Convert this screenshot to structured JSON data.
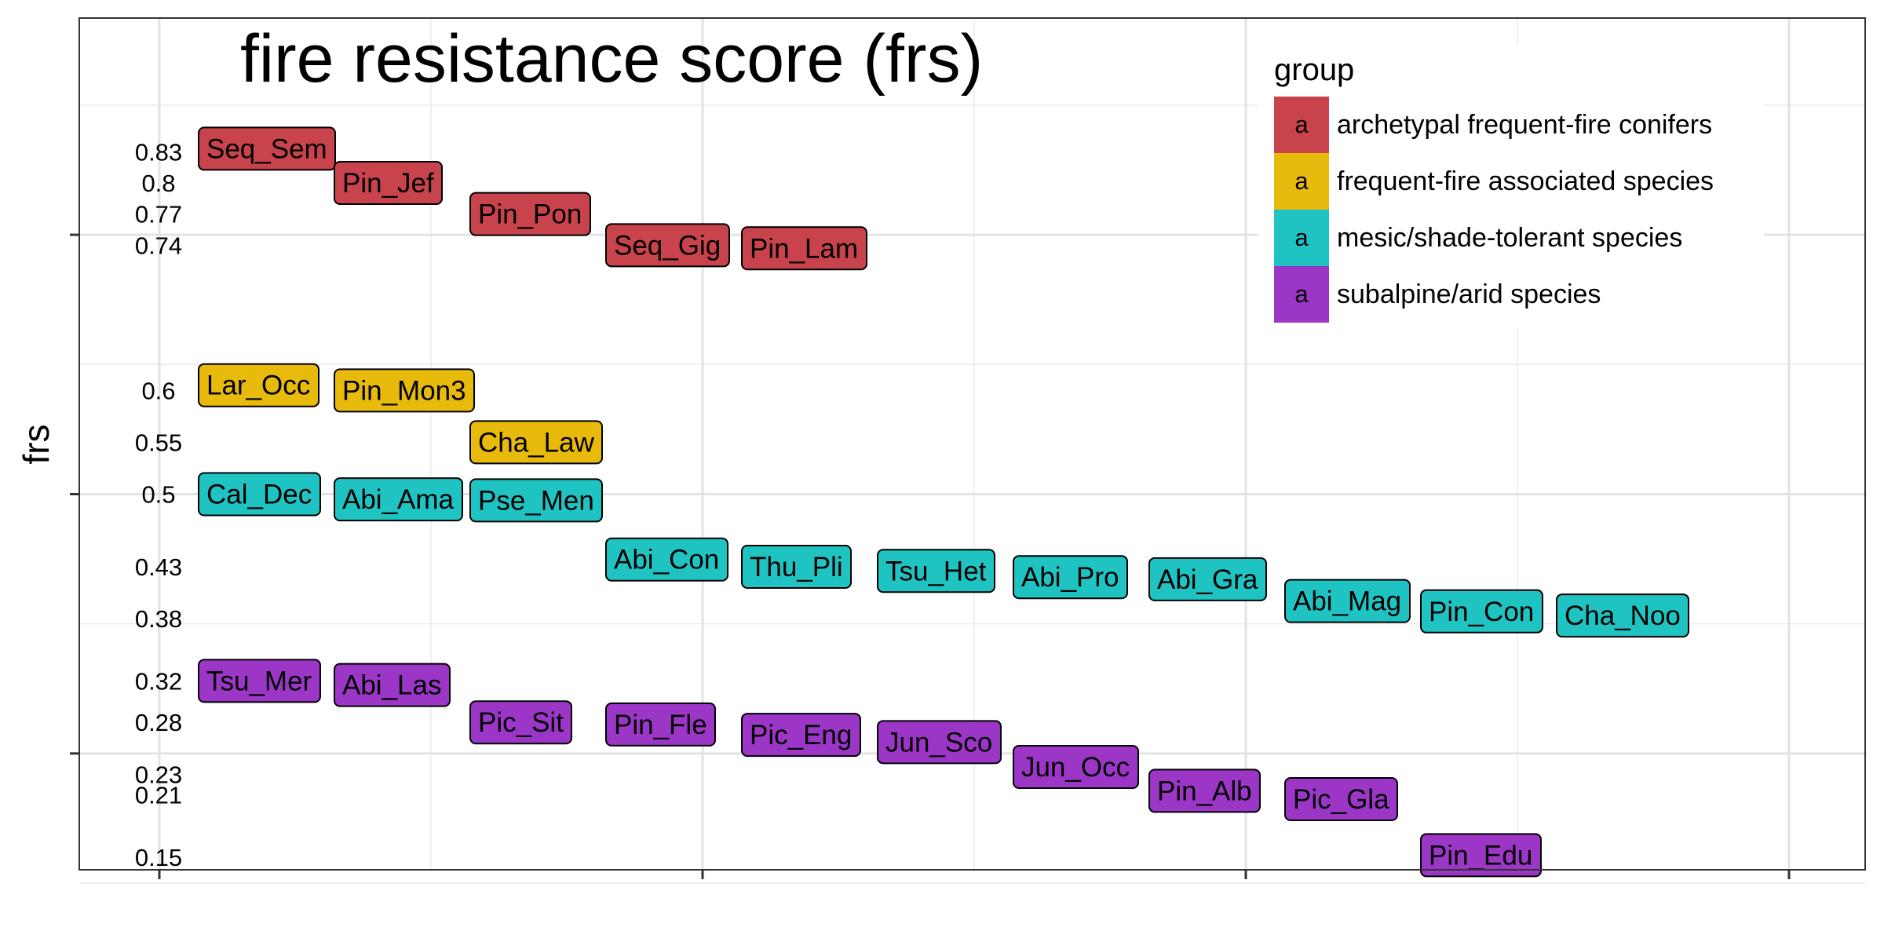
{
  "chart_data": {
    "type": "scatter",
    "title": "fire resistance score (frs)",
    "ylabel": "frs",
    "xlabel": "",
    "ylim": [
      0.12,
      0.87
    ],
    "y_major_ticks": [
      0.25,
      0.5,
      0.75
    ],
    "y_minor_ticks": [
      0.125,
      0.375,
      0.625,
      0.875
    ],
    "x_major_ticks": [
      0,
      10,
      20,
      30
    ],
    "x_minor_ticks": [
      5,
      15,
      25
    ],
    "xlim": [
      -1.5,
      31.5
    ],
    "grid": true,
    "legend_position": "top-right",
    "legend": {
      "title": "group",
      "key_glyph": "a",
      "entries": [
        {
          "label": "archetypal frequent-fire conifers",
          "color": "#C8434B"
        },
        {
          "label": "frequent-fire associated species",
          "color": "#E8BA0C"
        },
        {
          "label": "mesic/shade-tolerant species",
          "color": "#1FC4C2"
        },
        {
          "label": "subalpine/arid species",
          "color": "#9B36C6"
        }
      ]
    },
    "value_labels": [
      "0.83",
      "0.8",
      "0.77",
      "0.74",
      "0.6",
      "0.55",
      "0.5",
      "0.43",
      "0.38",
      "0.32",
      "0.28",
      "0.23",
      "0.21",
      "0.15"
    ],
    "species": [
      {
        "name": "Seq_Sem",
        "group": 0,
        "rank": 1,
        "frs": 0.833
      },
      {
        "name": "Pin_Jef",
        "group": 0,
        "rank": 2,
        "frs": 0.8
      },
      {
        "name": "Pin_Pon",
        "group": 0,
        "rank": 3,
        "frs": 0.77
      },
      {
        "name": "Seq_Gig",
        "group": 0,
        "rank": 4,
        "frs": 0.74
      },
      {
        "name": "Pin_Lam",
        "group": 0,
        "rank": 5,
        "frs": 0.737
      },
      {
        "name": "Lar_Occ",
        "group": 1,
        "rank": 1,
        "frs": 0.605
      },
      {
        "name": "Pin_Mon3",
        "group": 1,
        "rank": 2,
        "frs": 0.6
      },
      {
        "name": "Cha_Law",
        "group": 1,
        "rank": 3,
        "frs": 0.55
      },
      {
        "name": "Cal_Dec",
        "group": 2,
        "rank": 1,
        "frs": 0.5
      },
      {
        "name": "Abi_Ama",
        "group": 2,
        "rank": 2,
        "frs": 0.495
      },
      {
        "name": "Pse_Men",
        "group": 2,
        "rank": 3,
        "frs": 0.494
      },
      {
        "name": "Abi_Con",
        "group": 2,
        "rank": 4,
        "frs": 0.437
      },
      {
        "name": "Thu_Pli",
        "group": 2,
        "rank": 5,
        "frs": 0.43
      },
      {
        "name": "Tsu_Het",
        "group": 2,
        "rank": 6,
        "frs": 0.426
      },
      {
        "name": "Abi_Pro",
        "group": 2,
        "rank": 7,
        "frs": 0.42
      },
      {
        "name": "Abi_Gra",
        "group": 2,
        "rank": 8,
        "frs": 0.418
      },
      {
        "name": "Abi_Mag",
        "group": 2,
        "rank": 9,
        "frs": 0.397
      },
      {
        "name": "Pin_Con",
        "group": 2,
        "rank": 10,
        "frs": 0.387
      },
      {
        "name": "Cha_Noo",
        "group": 2,
        "rank": 11,
        "frs": 0.383
      },
      {
        "name": "Tsu_Mer",
        "group": 3,
        "rank": 1,
        "frs": 0.32
      },
      {
        "name": "Abi_Las",
        "group": 3,
        "rank": 2,
        "frs": 0.316
      },
      {
        "name": "Pic_Sit",
        "group": 3,
        "rank": 3,
        "frs": 0.28
      },
      {
        "name": "Pin_Fle",
        "group": 3,
        "rank": 4,
        "frs": 0.278
      },
      {
        "name": "Pic_Eng",
        "group": 3,
        "rank": 5,
        "frs": 0.268
      },
      {
        "name": "Jun_Sco",
        "group": 3,
        "rank": 6,
        "frs": 0.261
      },
      {
        "name": "Jun_Occ",
        "group": 3,
        "rank": 7,
        "frs": 0.237
      },
      {
        "name": "Pin_Alb",
        "group": 3,
        "rank": 8,
        "frs": 0.214
      },
      {
        "name": "Pic_Gla",
        "group": 3,
        "rank": 9,
        "frs": 0.206
      },
      {
        "name": "Pin_Edu",
        "group": 3,
        "rank": 10,
        "frs": 0.152
      }
    ]
  }
}
